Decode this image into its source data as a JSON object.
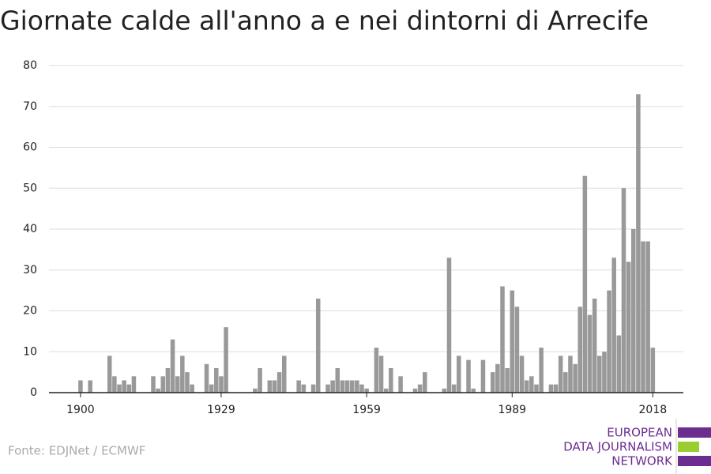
{
  "chart_data": {
    "type": "bar",
    "title": "Giornate calde all'anno a e nei dintorni di Arrecife",
    "source": "Fonte: EDJNet / ECMWF",
    "logo": [
      "EUROPEAN",
      "DATA JOURNALISM",
      "NETWORK"
    ],
    "color": "#999999",
    "x": [
      1900,
      1901,
      1902,
      1903,
      1904,
      1905,
      1906,
      1907,
      1908,
      1909,
      1910,
      1911,
      1912,
      1913,
      1914,
      1915,
      1916,
      1917,
      1918,
      1919,
      1920,
      1921,
      1922,
      1923,
      1924,
      1925,
      1926,
      1927,
      1928,
      1929,
      1930,
      1931,
      1932,
      1933,
      1934,
      1935,
      1936,
      1937,
      1938,
      1939,
      1940,
      1941,
      1942,
      1943,
      1944,
      1945,
      1946,
      1947,
      1948,
      1949,
      1950,
      1951,
      1952,
      1953,
      1954,
      1955,
      1956,
      1957,
      1958,
      1959,
      1960,
      1961,
      1962,
      1963,
      1964,
      1965,
      1966,
      1967,
      1968,
      1969,
      1970,
      1971,
      1972,
      1973,
      1974,
      1975,
      1976,
      1977,
      1978,
      1979,
      1980,
      1981,
      1982,
      1983,
      1984,
      1985,
      1986,
      1987,
      1988,
      1989,
      1990,
      1991,
      1992,
      1993,
      1994,
      1995,
      1996,
      1997,
      1998,
      1999,
      2000,
      2001,
      2002,
      2003,
      2004,
      2005,
      2006,
      2007,
      2008,
      2009,
      2010,
      2011,
      2012,
      2013,
      2014,
      2015,
      2016,
      2017,
      2018
    ],
    "values": [
      3,
      0,
      3,
      0,
      0,
      0,
      9,
      4,
      2,
      3,
      2,
      4,
      0,
      0,
      0,
      4,
      1,
      4,
      6,
      13,
      4,
      9,
      5,
      2,
      0,
      0,
      7,
      2,
      6,
      4,
      16,
      0,
      0,
      0,
      0,
      0,
      1,
      6,
      0,
      3,
      3,
      5,
      9,
      0,
      0,
      3,
      2,
      0,
      2,
      23,
      0,
      2,
      3,
      6,
      3,
      3,
      3,
      3,
      2,
      1,
      0,
      11,
      9,
      1,
      6,
      0,
      4,
      0,
      0,
      1,
      2,
      5,
      0,
      0,
      0,
      1,
      33,
      2,
      9,
      0,
      8,
      1,
      0,
      8,
      0,
      5,
      7,
      26,
      6,
      25,
      21,
      9,
      3,
      4,
      2,
      11,
      0,
      2,
      2,
      9,
      5,
      9,
      7,
      21,
      53,
      19,
      23,
      9,
      10,
      25,
      33,
      14,
      50,
      32,
      40,
      73,
      37,
      37,
      11
    ],
    "xlim": [
      1893.5,
      2024.3
    ],
    "xticks": [
      1900,
      1929,
      1959,
      1989,
      2018
    ],
    "ylim": [
      0,
      80
    ],
    "yticks": [
      0,
      10,
      20,
      30,
      40,
      50,
      60,
      70,
      80
    ],
    "grid": true
  }
}
